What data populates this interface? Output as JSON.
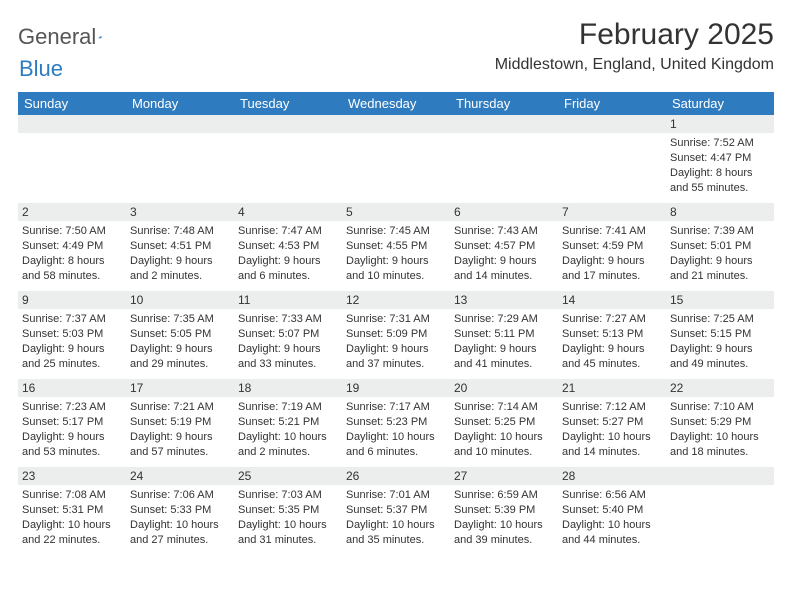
{
  "brand": {
    "word1": "General",
    "word2": "Blue"
  },
  "title": "February 2025",
  "location": "Middlestown, England, United Kingdom",
  "weekdays": [
    "Sunday",
    "Monday",
    "Tuesday",
    "Wednesday",
    "Thursday",
    "Friday",
    "Saturday"
  ],
  "colors": {
    "header_bg": "#2f7bbf",
    "header_text": "#ffffff",
    "daynum_bg": "#eceded",
    "text": "#333333",
    "background": "#ffffff"
  },
  "typography": {
    "title_fontsize": 30,
    "location_fontsize": 16,
    "weekday_fontsize": 13,
    "daynum_fontsize": 12,
    "body_fontsize": 11
  },
  "layout": {
    "columns": 7,
    "rows": 5,
    "cell_min_height": 88
  },
  "weeks": [
    [
      {
        "day": "",
        "sunrise": "",
        "sunset": "",
        "daylight": ""
      },
      {
        "day": "",
        "sunrise": "",
        "sunset": "",
        "daylight": ""
      },
      {
        "day": "",
        "sunrise": "",
        "sunset": "",
        "daylight": ""
      },
      {
        "day": "",
        "sunrise": "",
        "sunset": "",
        "daylight": ""
      },
      {
        "day": "",
        "sunrise": "",
        "sunset": "",
        "daylight": ""
      },
      {
        "day": "",
        "sunrise": "",
        "sunset": "",
        "daylight": ""
      },
      {
        "day": "1",
        "sunrise": "Sunrise: 7:52 AM",
        "sunset": "Sunset: 4:47 PM",
        "daylight": "Daylight: 8 hours and 55 minutes."
      }
    ],
    [
      {
        "day": "2",
        "sunrise": "Sunrise: 7:50 AM",
        "sunset": "Sunset: 4:49 PM",
        "daylight": "Daylight: 8 hours and 58 minutes."
      },
      {
        "day": "3",
        "sunrise": "Sunrise: 7:48 AM",
        "sunset": "Sunset: 4:51 PM",
        "daylight": "Daylight: 9 hours and 2 minutes."
      },
      {
        "day": "4",
        "sunrise": "Sunrise: 7:47 AM",
        "sunset": "Sunset: 4:53 PM",
        "daylight": "Daylight: 9 hours and 6 minutes."
      },
      {
        "day": "5",
        "sunrise": "Sunrise: 7:45 AM",
        "sunset": "Sunset: 4:55 PM",
        "daylight": "Daylight: 9 hours and 10 minutes."
      },
      {
        "day": "6",
        "sunrise": "Sunrise: 7:43 AM",
        "sunset": "Sunset: 4:57 PM",
        "daylight": "Daylight: 9 hours and 14 minutes."
      },
      {
        "day": "7",
        "sunrise": "Sunrise: 7:41 AM",
        "sunset": "Sunset: 4:59 PM",
        "daylight": "Daylight: 9 hours and 17 minutes."
      },
      {
        "day": "8",
        "sunrise": "Sunrise: 7:39 AM",
        "sunset": "Sunset: 5:01 PM",
        "daylight": "Daylight: 9 hours and 21 minutes."
      }
    ],
    [
      {
        "day": "9",
        "sunrise": "Sunrise: 7:37 AM",
        "sunset": "Sunset: 5:03 PM",
        "daylight": "Daylight: 9 hours and 25 minutes."
      },
      {
        "day": "10",
        "sunrise": "Sunrise: 7:35 AM",
        "sunset": "Sunset: 5:05 PM",
        "daylight": "Daylight: 9 hours and 29 minutes."
      },
      {
        "day": "11",
        "sunrise": "Sunrise: 7:33 AM",
        "sunset": "Sunset: 5:07 PM",
        "daylight": "Daylight: 9 hours and 33 minutes."
      },
      {
        "day": "12",
        "sunrise": "Sunrise: 7:31 AM",
        "sunset": "Sunset: 5:09 PM",
        "daylight": "Daylight: 9 hours and 37 minutes."
      },
      {
        "day": "13",
        "sunrise": "Sunrise: 7:29 AM",
        "sunset": "Sunset: 5:11 PM",
        "daylight": "Daylight: 9 hours and 41 minutes."
      },
      {
        "day": "14",
        "sunrise": "Sunrise: 7:27 AM",
        "sunset": "Sunset: 5:13 PM",
        "daylight": "Daylight: 9 hours and 45 minutes."
      },
      {
        "day": "15",
        "sunrise": "Sunrise: 7:25 AM",
        "sunset": "Sunset: 5:15 PM",
        "daylight": "Daylight: 9 hours and 49 minutes."
      }
    ],
    [
      {
        "day": "16",
        "sunrise": "Sunrise: 7:23 AM",
        "sunset": "Sunset: 5:17 PM",
        "daylight": "Daylight: 9 hours and 53 minutes."
      },
      {
        "day": "17",
        "sunrise": "Sunrise: 7:21 AM",
        "sunset": "Sunset: 5:19 PM",
        "daylight": "Daylight: 9 hours and 57 minutes."
      },
      {
        "day": "18",
        "sunrise": "Sunrise: 7:19 AM",
        "sunset": "Sunset: 5:21 PM",
        "daylight": "Daylight: 10 hours and 2 minutes."
      },
      {
        "day": "19",
        "sunrise": "Sunrise: 7:17 AM",
        "sunset": "Sunset: 5:23 PM",
        "daylight": "Daylight: 10 hours and 6 minutes."
      },
      {
        "day": "20",
        "sunrise": "Sunrise: 7:14 AM",
        "sunset": "Sunset: 5:25 PM",
        "daylight": "Daylight: 10 hours and 10 minutes."
      },
      {
        "day": "21",
        "sunrise": "Sunrise: 7:12 AM",
        "sunset": "Sunset: 5:27 PM",
        "daylight": "Daylight: 10 hours and 14 minutes."
      },
      {
        "day": "22",
        "sunrise": "Sunrise: 7:10 AM",
        "sunset": "Sunset: 5:29 PM",
        "daylight": "Daylight: 10 hours and 18 minutes."
      }
    ],
    [
      {
        "day": "23",
        "sunrise": "Sunrise: 7:08 AM",
        "sunset": "Sunset: 5:31 PM",
        "daylight": "Daylight: 10 hours and 22 minutes."
      },
      {
        "day": "24",
        "sunrise": "Sunrise: 7:06 AM",
        "sunset": "Sunset: 5:33 PM",
        "daylight": "Daylight: 10 hours and 27 minutes."
      },
      {
        "day": "25",
        "sunrise": "Sunrise: 7:03 AM",
        "sunset": "Sunset: 5:35 PM",
        "daylight": "Daylight: 10 hours and 31 minutes."
      },
      {
        "day": "26",
        "sunrise": "Sunrise: 7:01 AM",
        "sunset": "Sunset: 5:37 PM",
        "daylight": "Daylight: 10 hours and 35 minutes."
      },
      {
        "day": "27",
        "sunrise": "Sunrise: 6:59 AM",
        "sunset": "Sunset: 5:39 PM",
        "daylight": "Daylight: 10 hours and 39 minutes."
      },
      {
        "day": "28",
        "sunrise": "Sunrise: 6:56 AM",
        "sunset": "Sunset: 5:40 PM",
        "daylight": "Daylight: 10 hours and 44 minutes."
      },
      {
        "day": "",
        "sunrise": "",
        "sunset": "",
        "daylight": ""
      }
    ]
  ]
}
